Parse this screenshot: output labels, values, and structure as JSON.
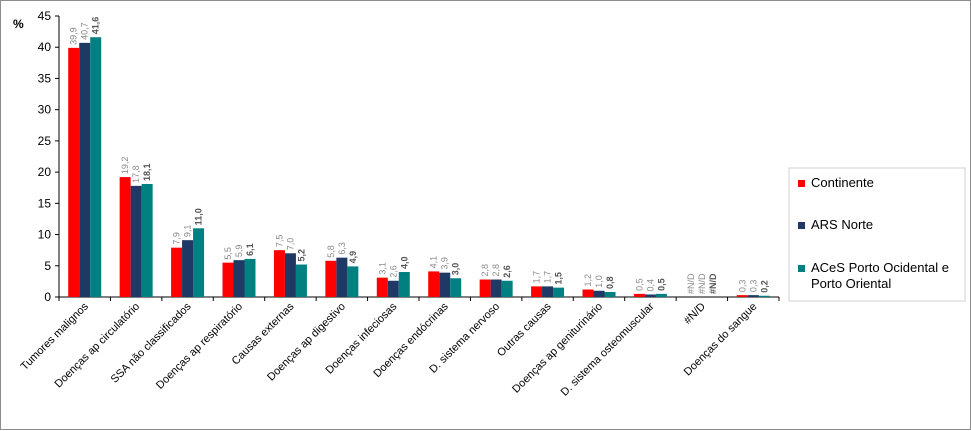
{
  "chart_data": {
    "type": "bar",
    "unit_label": "%",
    "ylim": [
      0,
      45
    ],
    "yticks": [
      0,
      5,
      10,
      15,
      20,
      25,
      30,
      35,
      40,
      45
    ],
    "ytick_labels": [
      "0",
      "5",
      "10",
      "15",
      "20",
      "25",
      "30",
      "35",
      "40",
      "45"
    ],
    "grid": false,
    "legend_position": "right",
    "categories": [
      "Tumores malignos",
      "Doenças ap circulatório",
      "SSA não classificados",
      "Doenças ap respiratório",
      "Causas externas",
      "Doenças ap digestivo",
      "Doenças infeciosas",
      "Doenças endócrinas",
      "D. sistema nervoso",
      "Outras causas",
      "Doenças ap geniturinário",
      "D. sistema osteomuscular",
      "#N/D",
      "Doenças do sangue"
    ],
    "series": [
      {
        "name": "Continente",
        "color": "#ff0000",
        "values": [
          39.9,
          19.2,
          7.9,
          5.5,
          7.5,
          5.8,
          3.1,
          4.1,
          2.8,
          1.7,
          1.2,
          0.5,
          null,
          0.3
        ],
        "labels": [
          "39,9",
          "19,2",
          "7,9",
          "5,5",
          "7,5",
          "5,8",
          "3,1",
          "4,1",
          "2,8",
          "1,7",
          "1,2",
          "0,5",
          "#N/D",
          "0,3"
        ]
      },
      {
        "name": "ARS Norte",
        "color": "#1f3864",
        "values": [
          40.7,
          17.8,
          9.1,
          5.9,
          7.0,
          6.3,
          2.6,
          3.9,
          2.8,
          1.7,
          1.0,
          0.4,
          null,
          0.3
        ],
        "labels": [
          "40,7",
          "17,8",
          "9,1",
          "5,9",
          "7,0",
          "6,3",
          "2,6",
          "3,9",
          "2,8",
          "1,7",
          "1,0",
          "0,4",
          "#N/D",
          "0,3"
        ]
      },
      {
        "name": "ACeS Porto Ocidental e Porto Oriental",
        "color": "#008080",
        "values": [
          41.6,
          18.1,
          11.0,
          6.1,
          5.2,
          4.9,
          4.0,
          3.0,
          2.6,
          1.5,
          0.8,
          0.5,
          null,
          0.2
        ],
        "labels": [
          "41,6",
          "18,1",
          "11,0",
          "6,1",
          "5,2",
          "4,9",
          "4,0",
          "3,0",
          "2,6",
          "1,5",
          "0,8",
          "0,5",
          "#N/D",
          "0,2"
        ]
      }
    ],
    "legend_lines": [
      [
        "Continente"
      ],
      [
        "ARS Norte"
      ],
      [
        "ACeS Porto Ocidental e",
        "Porto Oriental"
      ]
    ]
  }
}
